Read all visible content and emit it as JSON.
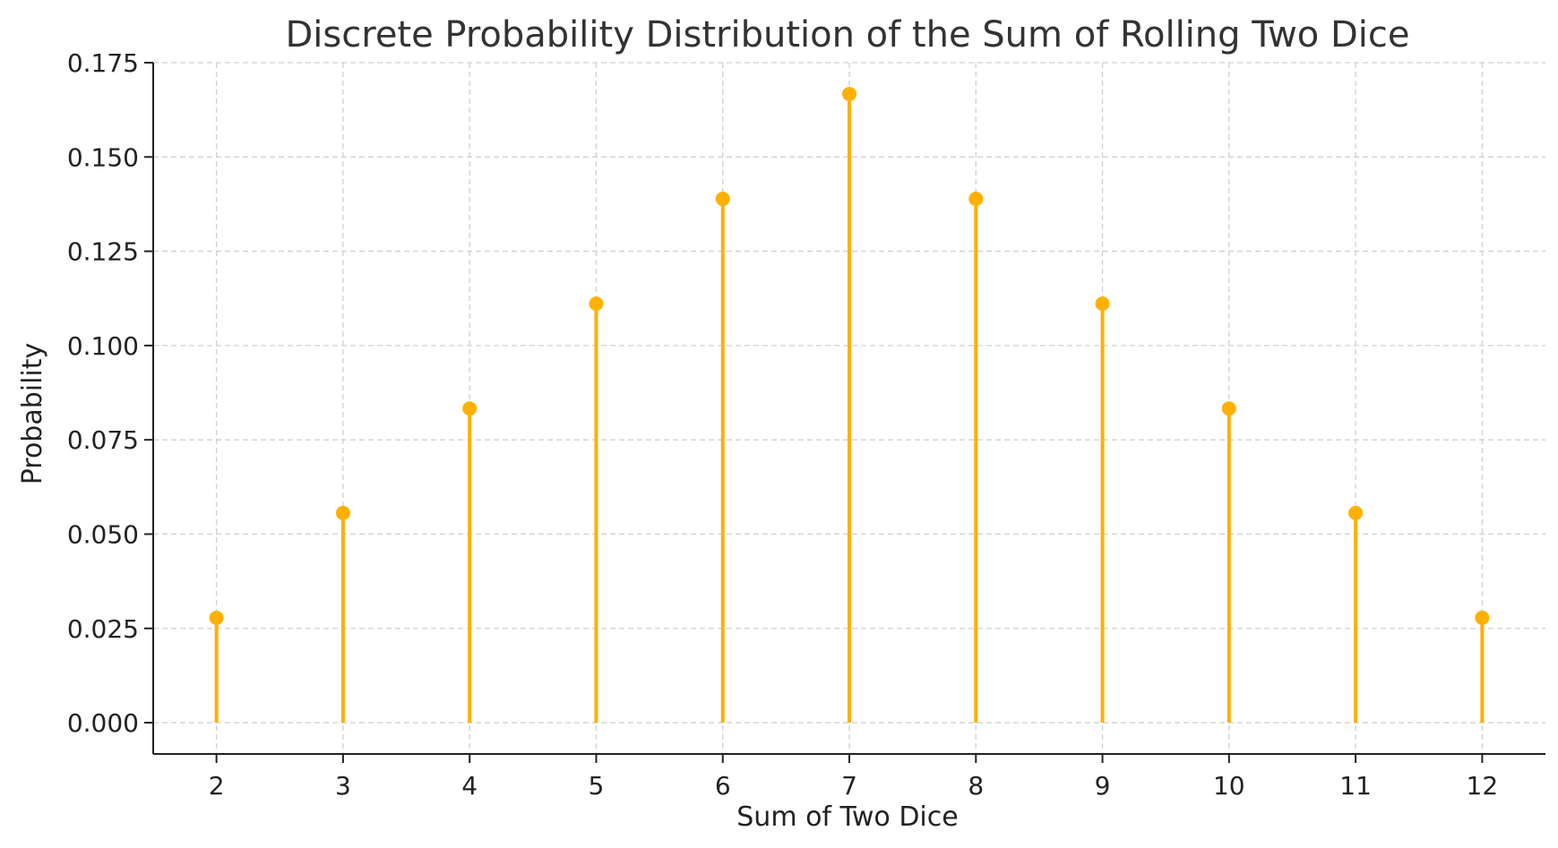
{
  "chart_data": {
    "type": "stem",
    "title": "Discrete Probability Distribution of the Sum of Rolling Two Dice",
    "xlabel": "Sum of Two Dice",
    "ylabel": "Probability",
    "x": [
      2,
      3,
      4,
      5,
      6,
      7,
      8,
      9,
      10,
      11,
      12
    ],
    "y": [
      0.0278,
      0.0556,
      0.0833,
      0.1111,
      0.1389,
      0.1667,
      0.1389,
      0.1111,
      0.0833,
      0.0556,
      0.0278
    ],
    "xticks": [
      "2",
      "3",
      "4",
      "5",
      "6",
      "7",
      "8",
      "9",
      "10",
      "11",
      "12"
    ],
    "yticks": [
      "0.000",
      "0.025",
      "0.050",
      "0.075",
      "0.100",
      "0.125",
      "0.150",
      "0.175"
    ],
    "ylim": [
      -0.0083,
      0.175
    ],
    "xlim": [
      1.5,
      12.5
    ],
    "grid": true,
    "colors": {
      "stem": "#FFB000",
      "grid": "#d0d0d0",
      "axis": "#222222"
    }
  }
}
